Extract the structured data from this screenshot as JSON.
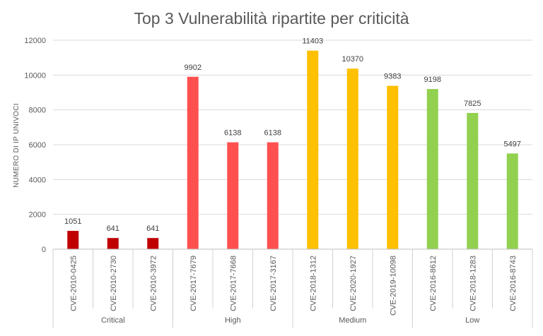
{
  "chart_data": {
    "type": "bar",
    "title": "Top 3 Vulnerabilità ripartite per criticità",
    "ylabel": "NUMERO DI IP UNIVOCI",
    "xlabel": "",
    "ylim": [
      0,
      12000
    ],
    "yticks": [
      0,
      2000,
      4000,
      6000,
      8000,
      10000,
      12000
    ],
    "grid": true,
    "legend": "none",
    "groups": [
      {
        "name": "Critical",
        "color": "#c00000",
        "categories": [
          "CVE-2010-0425",
          "CVE-2010-2730",
          "CVE-2010-3972"
        ],
        "values": [
          1051,
          641,
          641
        ]
      },
      {
        "name": "High",
        "color": "#ff5050",
        "categories": [
          "CVE-2017-7679",
          "CVE-2017-7668",
          "CVE-2017-3167"
        ],
        "values": [
          9902,
          6138,
          6138
        ]
      },
      {
        "name": "Medium",
        "color": "#ffc000",
        "categories": [
          "CVE-2018-1312",
          "CVE-2020-1927",
          "CVE-2019-10098"
        ],
        "values": [
          11403,
          10370,
          9383
        ]
      },
      {
        "name": "Low",
        "color": "#92d050",
        "categories": [
          "CVE-2016-8612",
          "CVE-2018-1283",
          "CVE-2016-8743"
        ],
        "values": [
          9198,
          7825,
          5497
        ]
      }
    ]
  }
}
